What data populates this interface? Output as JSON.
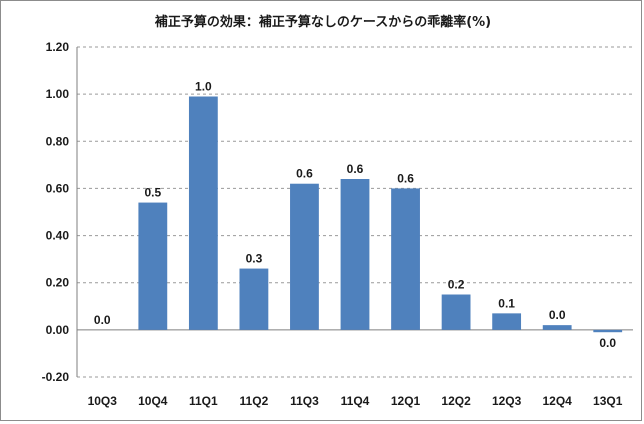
{
  "chart_data": {
    "type": "bar",
    "title": "補正予算の効果：補正予算なしのケースからの乖離率(%)",
    "xlabel": "",
    "ylabel": "",
    "categories": [
      "10Q3",
      "10Q4",
      "11Q1",
      "11Q2",
      "11Q3",
      "11Q4",
      "12Q1",
      "12Q2",
      "12Q3",
      "12Q4",
      "13Q1"
    ],
    "values": [
      0.0,
      0.54,
      0.99,
      0.26,
      0.62,
      0.64,
      0.6,
      0.15,
      0.07,
      0.02,
      -0.01
    ],
    "data_labels": [
      "0.0",
      "0.5",
      "1.0",
      "0.3",
      "0.6",
      "0.6",
      "0.6",
      "0.2",
      "0.1",
      "0.0",
      "0.0"
    ],
    "ylim": [
      -0.2,
      1.2
    ],
    "yticks": [
      -0.2,
      0.0,
      0.2,
      0.4,
      0.6,
      0.8,
      1.0,
      1.2
    ],
    "ytick_labels": [
      "-0.20",
      "0.00",
      "0.20",
      "0.40",
      "0.60",
      "0.80",
      "1.00",
      "1.20"
    ],
    "bar_color": "#4f81bd",
    "grid": true,
    "legend": "none"
  }
}
